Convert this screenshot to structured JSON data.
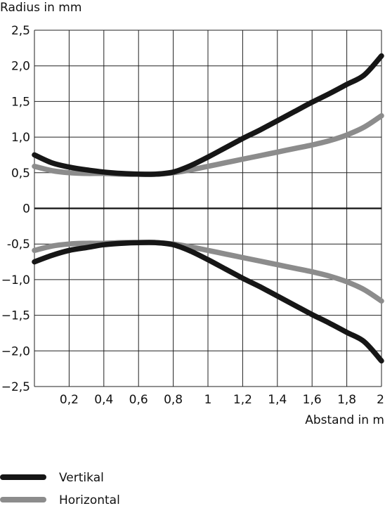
{
  "chart_data": {
    "type": "line",
    "ylabel": "Radius in mm",
    "xlabel": "Abstand in m",
    "xlim": [
      0,
      2
    ],
    "ylim": [
      -2.5,
      2.5
    ],
    "grid": true,
    "x_ticks": [
      "0,2",
      "0,4",
      "0,6",
      "0,8",
      "1",
      "1,2",
      "1,4",
      "1,6",
      "1,8",
      "2"
    ],
    "y_ticks": [
      "2,5",
      "2,0",
      "1,5",
      "1,0",
      "0,5",
      "0",
      "-0,5",
      "−1,0",
      "−1,5",
      "−2,0",
      "−2,5"
    ],
    "x": [
      0,
      0.1,
      0.2,
      0.3,
      0.4,
      0.5,
      0.6,
      0.7,
      0.8,
      0.9,
      1.0,
      1.1,
      1.2,
      1.3,
      1.4,
      1.5,
      1.6,
      1.7,
      1.8,
      1.9,
      2.0
    ],
    "series": [
      {
        "name": "Vertikal",
        "color": "#161616",
        "values": [
          0.75,
          0.64,
          0.58,
          0.54,
          0.51,
          0.49,
          0.48,
          0.48,
          0.51,
          0.6,
          0.72,
          0.85,
          0.98,
          1.1,
          1.23,
          1.36,
          1.49,
          1.61,
          1.74,
          1.87,
          2.14
        ],
        "values_lower": [
          -0.75,
          -0.66,
          -0.59,
          -0.55,
          -0.51,
          -0.49,
          -0.48,
          -0.48,
          -0.51,
          -0.6,
          -0.72,
          -0.85,
          -0.98,
          -1.1,
          -1.23,
          -1.36,
          -1.49,
          -1.61,
          -1.74,
          -1.87,
          -2.14
        ]
      },
      {
        "name": "Horizontal",
        "color": "#8c8c8c",
        "values": [
          0.59,
          0.53,
          0.5,
          0.49,
          0.49,
          0.48,
          0.48,
          0.48,
          0.5,
          0.54,
          0.59,
          0.64,
          0.69,
          0.74,
          0.79,
          0.84,
          0.89,
          0.95,
          1.03,
          1.14,
          1.3
        ],
        "values_lower": [
          -0.59,
          -0.53,
          -0.5,
          -0.49,
          -0.49,
          -0.48,
          -0.48,
          -0.48,
          -0.5,
          -0.54,
          -0.59,
          -0.64,
          -0.69,
          -0.74,
          -0.79,
          -0.84,
          -0.89,
          -0.95,
          -1.03,
          -1.14,
          -1.3
        ]
      }
    ]
  }
}
